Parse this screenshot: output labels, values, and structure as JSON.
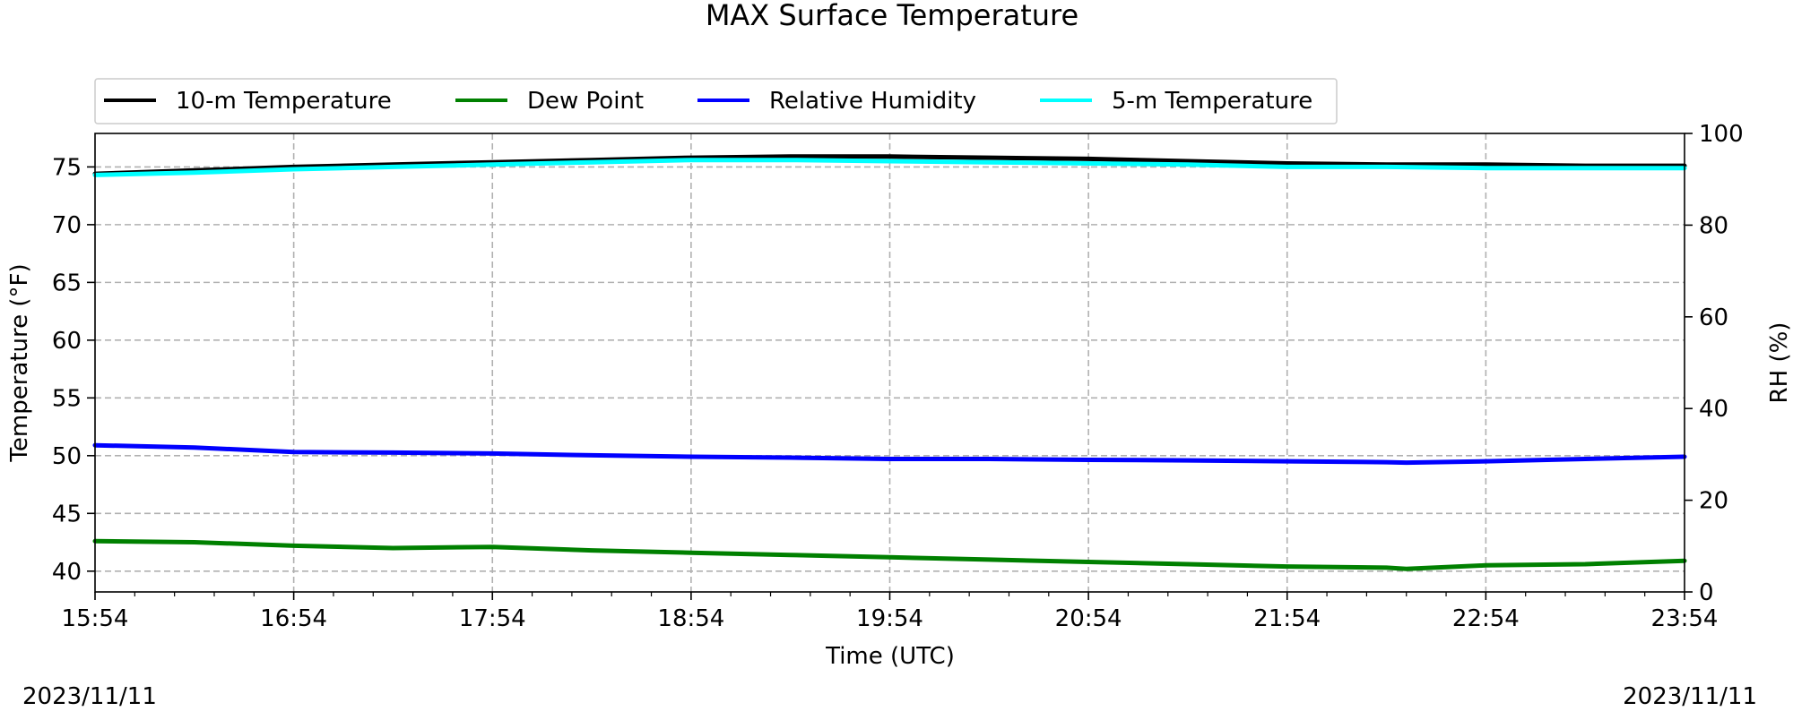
{
  "chart_data": {
    "type": "line",
    "title": "MAX Surface Temperature",
    "xlabel": "Time (UTC)",
    "ylabel": "Temperature ($^\\circ$F)",
    "ylabel_display": "Temperature (°F)",
    "y2label": "RH (%)",
    "x_ticks": [
      "15:54",
      "16:54",
      "17:54",
      "18:54",
      "19:54",
      "20:54",
      "21:54",
      "22:54",
      "23:54"
    ],
    "x_range_hours": [
      0,
      8
    ],
    "ylim": [
      38.2,
      77.9
    ],
    "y_ticks": [
      40,
      45,
      50,
      55,
      60,
      65,
      70,
      75
    ],
    "y2lim": [
      0,
      100
    ],
    "y2_ticks": [
      0,
      20,
      40,
      60,
      80,
      100
    ],
    "grid": true,
    "legend_placement": "top-left, above plot",
    "date_left": "2023/11/11",
    "date_right": "2023/11/11",
    "series": [
      {
        "name": "10-m Temperature",
        "axis": "left",
        "color": "#000000",
        "x": [
          0,
          0.5,
          1,
          1.5,
          2,
          2.5,
          3,
          3.5,
          4,
          4.5,
          5,
          5.5,
          6,
          6.5,
          7,
          7.5,
          8
        ],
        "y": [
          74.4,
          74.7,
          75.0,
          75.2,
          75.4,
          75.6,
          75.8,
          75.9,
          75.9,
          75.8,
          75.7,
          75.5,
          75.3,
          75.2,
          75.2,
          75.1,
          75.1
        ]
      },
      {
        "name": "Dew Point",
        "axis": "left",
        "color": "#008000",
        "x": [
          0,
          0.5,
          1,
          1.5,
          2,
          2.5,
          3,
          3.5,
          4,
          4.5,
          5,
          5.5,
          6,
          6.5,
          6.6,
          7,
          7.5,
          8
        ],
        "y": [
          42.6,
          42.5,
          42.2,
          42.0,
          42.1,
          41.8,
          41.6,
          41.4,
          41.2,
          41.0,
          40.8,
          40.6,
          40.4,
          40.3,
          40.2,
          40.5,
          40.6,
          40.9
        ]
      },
      {
        "name": "Relative Humidity",
        "axis": "right",
        "color": "#0000ff",
        "x": [
          0,
          0.5,
          1,
          1.5,
          2,
          2.5,
          3,
          3.5,
          4,
          4.5,
          5,
          5.5,
          6,
          6.5,
          6.6,
          7,
          7.5,
          8
        ],
        "y": [
          32.0,
          31.5,
          30.5,
          30.4,
          30.2,
          29.8,
          29.5,
          29.3,
          29.0,
          29.0,
          28.8,
          28.7,
          28.5,
          28.3,
          28.2,
          28.5,
          29.0,
          29.5
        ]
      },
      {
        "name": "5-m Temperature",
        "axis": "left",
        "color": "#00ffff",
        "x": [
          0,
          0.5,
          1,
          1.5,
          2,
          2.5,
          3,
          3.5,
          4,
          4.5,
          5,
          5.5,
          6,
          6.5,
          7,
          7.5,
          8
        ],
        "y": [
          74.3,
          74.5,
          74.8,
          75.0,
          75.2,
          75.4,
          75.6,
          75.6,
          75.5,
          75.4,
          75.3,
          75.2,
          75.0,
          75.0,
          74.9,
          74.9,
          74.9
        ]
      }
    ]
  }
}
